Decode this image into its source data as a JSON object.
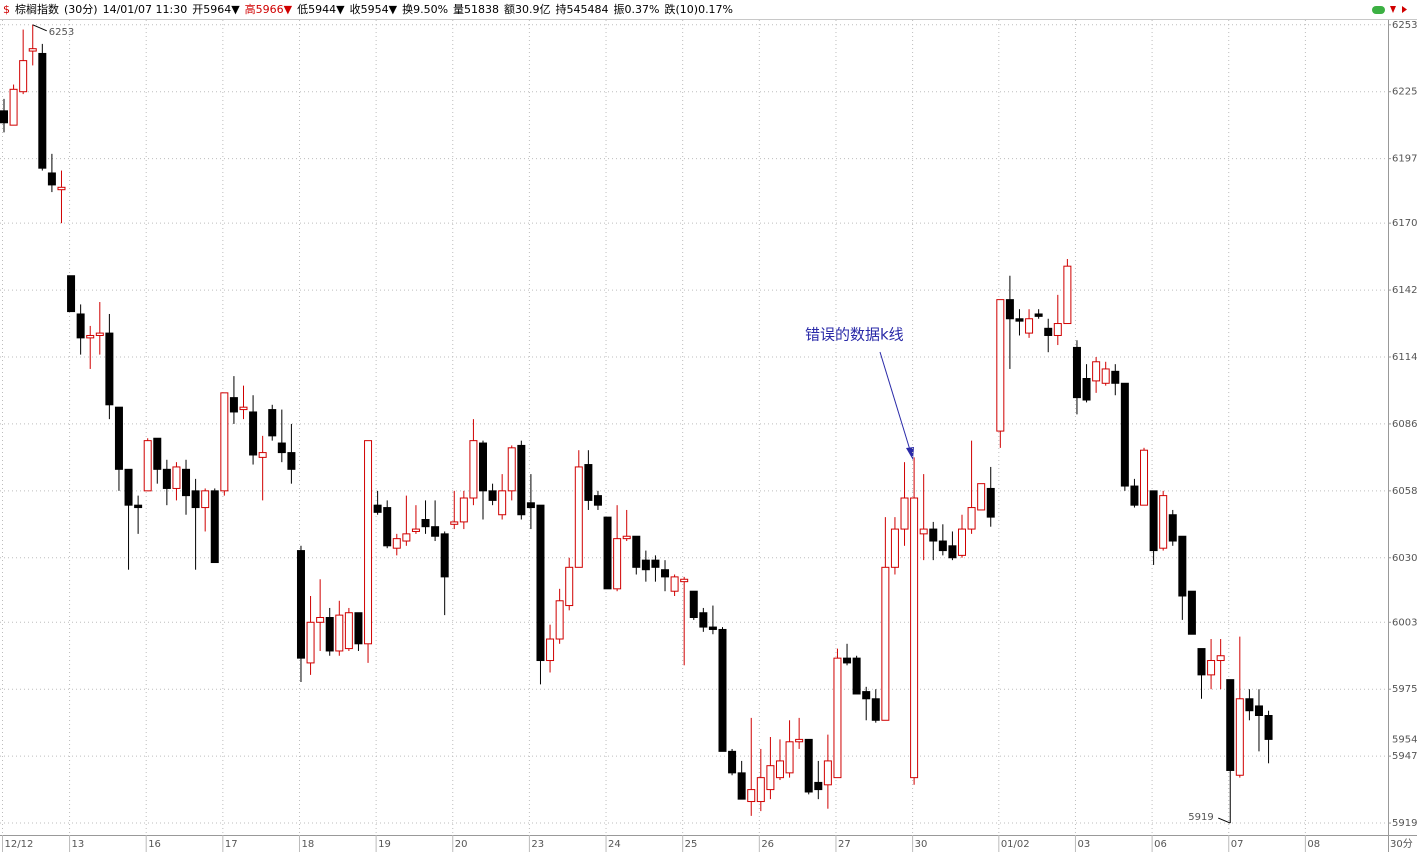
{
  "chart_data": {
    "type": "candlestick",
    "symbol": "$",
    "title": "棕榈指数",
    "period": "(30分)",
    "datetime": "14/01/07 11:30",
    "info": [
      {
        "text": "开5964▼",
        "color": "#000000"
      },
      {
        "text": "高5966▼",
        "color": "#d00000"
      },
      {
        "text": "低5944▼",
        "color": "#000000"
      },
      {
        "text": "收5954▼",
        "color": "#000000"
      },
      {
        "text": "换9.50%",
        "color": "#000000"
      },
      {
        "text": "量51838",
        "color": "#000000"
      },
      {
        "text": "额30.9亿",
        "color": "#000000"
      },
      {
        "text": "持545484",
        "color": "#000000"
      },
      {
        "text": "振0.37%",
        "color": "#000000"
      },
      {
        "text": "跌(10)0.17%",
        "color": "#000000"
      }
    ],
    "period_label": "30分",
    "categories": [
      "12/12",
      null,
      null,
      null,
      null,
      null,
      null,
      "13",
      null,
      null,
      null,
      null,
      null,
      null,
      null,
      "16",
      null,
      null,
      null,
      null,
      null,
      null,
      null,
      "17",
      null,
      null,
      null,
      null,
      null,
      null,
      null,
      "18",
      null,
      null,
      null,
      null,
      null,
      null,
      null,
      "19",
      null,
      null,
      null,
      null,
      null,
      null,
      null,
      "20",
      null,
      null,
      null,
      null,
      null,
      null,
      null,
      "23",
      null,
      null,
      null,
      null,
      null,
      null,
      null,
      "24",
      null,
      null,
      null,
      null,
      null,
      null,
      null,
      "25",
      null,
      null,
      null,
      null,
      null,
      null,
      null,
      "26",
      null,
      null,
      null,
      null,
      null,
      null,
      null,
      "27",
      null,
      null,
      null,
      null,
      null,
      null,
      null,
      "30",
      null,
      null,
      null,
      null,
      null,
      null,
      null,
      null,
      "01/02",
      null,
      null,
      null,
      null,
      null,
      null,
      null,
      "03",
      null,
      null,
      null,
      null,
      null,
      null,
      null,
      "06",
      null,
      null,
      null,
      null,
      null,
      null,
      null,
      "07",
      null,
      null,
      null,
      null,
      null,
      null,
      null,
      "08"
    ],
    "open": [
      6217,
      6211,
      6225,
      6242,
      6241,
      6191,
      6184,
      6148,
      6132,
      6122,
      6123,
      6124,
      6093,
      6067,
      6052,
      6058,
      6080,
      6067,
      6059,
      6067,
      6058,
      6051,
      6058,
      6058,
      6097,
      6092,
      6091,
      6072,
      6092,
      6078,
      6074,
      6033,
      5986,
      6003,
      6005,
      5991,
      5992,
      6007,
      5994,
      6052,
      6051,
      6034,
      6037,
      6041,
      6046,
      6043,
      6040,
      6044,
      6045,
      6055,
      6078,
      6058,
      6048,
      6058,
      6077,
      6053,
      6052,
      5987,
      5996,
      6010,
      6026,
      6069,
      6056,
      6047,
      6017,
      6038,
      6039,
      6029,
      6029,
      6025,
      6016,
      6020,
      6016,
      6007,
      6001,
      6000,
      5949,
      5940,
      5928,
      5928,
      5933,
      5938,
      5940,
      5953,
      5954,
      5936,
      5935,
      5938,
      5988,
      5988,
      5974,
      5971,
      5962,
      6026,
      6042,
      5938,
      6040,
      6042,
      6037,
      6035,
      6031,
      6042,
      6050,
      6059,
      6083,
      6138,
      6130,
      6124,
      6132,
      6126,
      6123,
      6128,
      6118,
      6105,
      6104,
      6103,
      6108,
      6103,
      6060,
      6052,
      6058,
      6034,
      6048,
      6039,
      6016,
      5992,
      5981,
      5987,
      5979,
      5939,
      5971,
      5968,
      5964,
      null,
      null,
      null,
      null
    ],
    "high": [
      6222,
      6228,
      6251,
      6253,
      6245,
      6199,
      6192,
      6148,
      6136,
      6127,
      6137,
      6132,
      6093,
      6067,
      6056,
      6080,
      6080,
      6071,
      6070,
      6071,
      6063,
      6059,
      6059,
      6099,
      6106,
      6102,
      6098,
      6081,
      6094,
      6092,
      6086,
      6035,
      6014,
      6021,
      6009,
      6012,
      6009,
      6007,
      6079,
      6058,
      6054,
      6040,
      6056,
      6052,
      6054,
      6054,
      6041,
      6058,
      6058,
      6088,
      6079,
      6061,
      6065,
      6077,
      6079,
      6065,
      6052,
      6002,
      6017,
      6030,
      6075,
      6075,
      6058,
      6047,
      6052,
      6050,
      6039,
      6033,
      6031,
      6029,
      6023,
      6022,
      6016,
      6009,
      6010,
      6001,
      5950,
      5945,
      5963,
      5950,
      5955,
      5954,
      5962,
      5963,
      5954,
      5945,
      5956,
      5992,
      5994,
      5989,
      5976,
      5975,
      6047,
      6047,
      6070,
      6072,
      6065,
      6045,
      6044,
      6041,
      6048,
      6079,
      6061,
      6068,
      6138,
      6148,
      6134,
      6134,
      6134,
      6130,
      6140,
      6155,
      6121,
      6111,
      6114,
      6112,
      6111,
      6103,
      6063,
      6076,
      6058,
      6058,
      6050,
      6039,
      6016,
      5992,
      5996,
      5996,
      5979,
      5997,
      5975,
      5975,
      5966,
      null,
      null,
      null,
      null
    ],
    "low": [
      6208,
      6211,
      6224,
      6236,
      6192,
      6183,
      6170,
      6133,
      6115,
      6109,
      6115,
      6088,
      6058,
      6025,
      6040,
      6058,
      6061,
      6052,
      6054,
      6048,
      6025,
      6041,
      6028,
      6056,
      6086,
      6088,
      6069,
      6054,
      6079,
      6070,
      6061,
      5978,
      5981,
      5991,
      5989,
      5989,
      5991,
      5991,
      5986,
      6048,
      6034,
      6031,
      6035,
      6040,
      6040,
      6037,
      6006,
      6042,
      6042,
      6052,
      6046,
      6052,
      6046,
      6054,
      6046,
      6042,
      5977,
      5982,
      5994,
      6008,
      6026,
      6050,
      6050,
      6017,
      6016,
      6037,
      6023,
      6020,
      6020,
      6016,
      6014,
      5985,
      6004,
      5999,
      5998,
      5949,
      5939,
      5929,
      5922,
      5924,
      5929,
      5937,
      5938,
      5950,
      5931,
      5929,
      5925,
      5938,
      5985,
      5973,
      5962,
      5961,
      5962,
      6023,
      6035,
      5935,
      6029,
      6029,
      6031,
      6029,
      6030,
      6040,
      6050,
      6043,
      6076,
      6109,
      6123,
      6122,
      6130,
      6116,
      6119,
      6128,
      6090,
      6095,
      6099,
      6102,
      6098,
      6058,
      6051,
      6052,
      6027,
      6033,
      6035,
      6004,
      5998,
      5971,
      5975,
      5975,
      5919,
      5938,
      5962,
      5949,
      5944,
      null,
      null,
      null,
      null
    ],
    "close": [
      6212,
      6226,
      6238,
      6243,
      6193,
      6186,
      6185,
      6133,
      6122,
      6123,
      6124,
      6094,
      6067,
      6052,
      6051,
      6079,
      6067,
      6059,
      6068,
      6056,
      6051,
      6058,
      6028,
      6099,
      6091,
      6093,
      6073,
      6074,
      6081,
      6074,
      6067,
      5988,
      6003,
      6005,
      5991,
      6006,
      6007,
      5994,
      6079,
      6049,
      6035,
      6038,
      6040,
      6042,
      6043,
      6039,
      6022,
      6045,
      6055,
      6079,
      6058,
      6054,
      6058,
      6076,
      6048,
      6051,
      5987,
      5996,
      6012,
      6026,
      6068,
      6054,
      6052,
      6017,
      6038,
      6039,
      6026,
      6025,
      6026,
      6022,
      6022,
      6021,
      6005,
      6001,
      6000,
      5949,
      5940,
      5929,
      5933,
      5938,
      5943,
      5945,
      5953,
      5954,
      5932,
      5933,
      5945,
      5988,
      5986,
      5973,
      5971,
      5962,
      6026,
      6042,
      6055,
      6055,
      6042,
      6037,
      6033,
      6030,
      6042,
      6051,
      6061,
      6047,
      6138,
      6130,
      6129,
      6130,
      6131,
      6123,
      6128,
      6152,
      6097,
      6096,
      6112,
      6109,
      6103,
      6060,
      6052,
      6075,
      6033,
      6056,
      6037,
      6014,
      5998,
      5981,
      5987,
      5989,
      5941,
      5971,
      5966,
      5964,
      5954,
      null,
      null,
      null,
      null
    ],
    "up_color": "#d00000",
    "down_color": "#000000",
    "ylim": [
      5914,
      6255
    ],
    "yticks": [
      6253,
      6225,
      6197,
      6170,
      6142,
      6114,
      6086,
      6058,
      6030,
      6003,
      5975,
      5947,
      5919
    ],
    "grid": true,
    "annotations": {
      "high_label": 6253,
      "low_label": 5919,
      "last_price": 5954,
      "note": "错误的数据k线",
      "note_color": "#2a2aa8"
    }
  }
}
